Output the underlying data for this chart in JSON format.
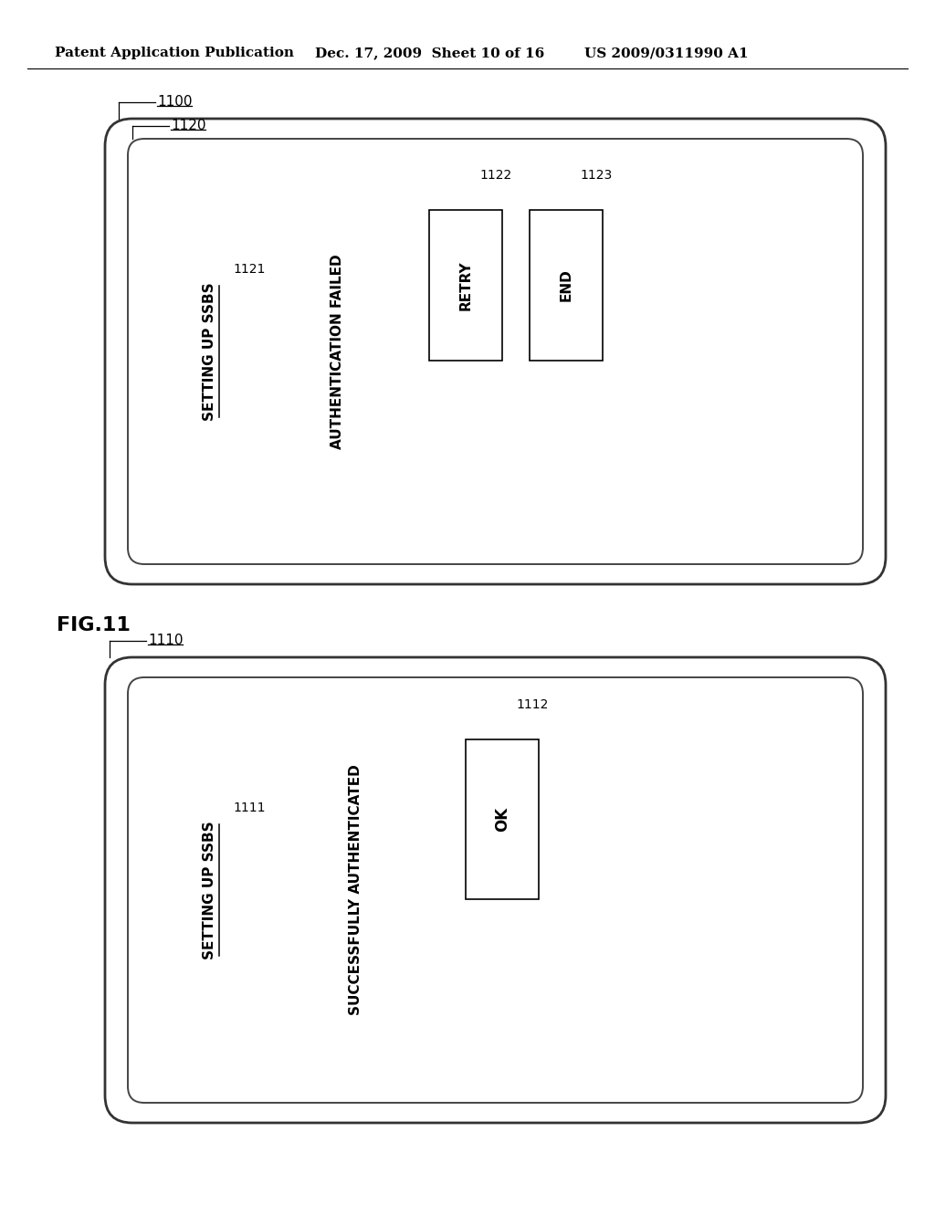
{
  "background_color": "#ffffff",
  "header_left": "Patent Application Publication",
  "header_mid": "Dec. 17, 2009  Sheet 10 of 16",
  "header_right": "US 2009/0311990 A1",
  "fig_label": "FIG.11",
  "top_diagram": {
    "outer_label": "1100",
    "inner_label": "1120",
    "title_label": "1121",
    "title_text": "SETTING UP SSBS",
    "message_text": "AUTHENTICATION FAILED",
    "btn1_label": "1122",
    "btn1_text": "RETRY",
    "btn2_label": "1123",
    "btn2_text": "END"
  },
  "bottom_diagram": {
    "outer_label": "1110",
    "title_label": "1111",
    "title_text": "SETTING UP SSBS",
    "message_text": "SUCCESSFULLY AUTHENTICATED",
    "btn1_label": "1112",
    "btn1_text": "OK"
  }
}
